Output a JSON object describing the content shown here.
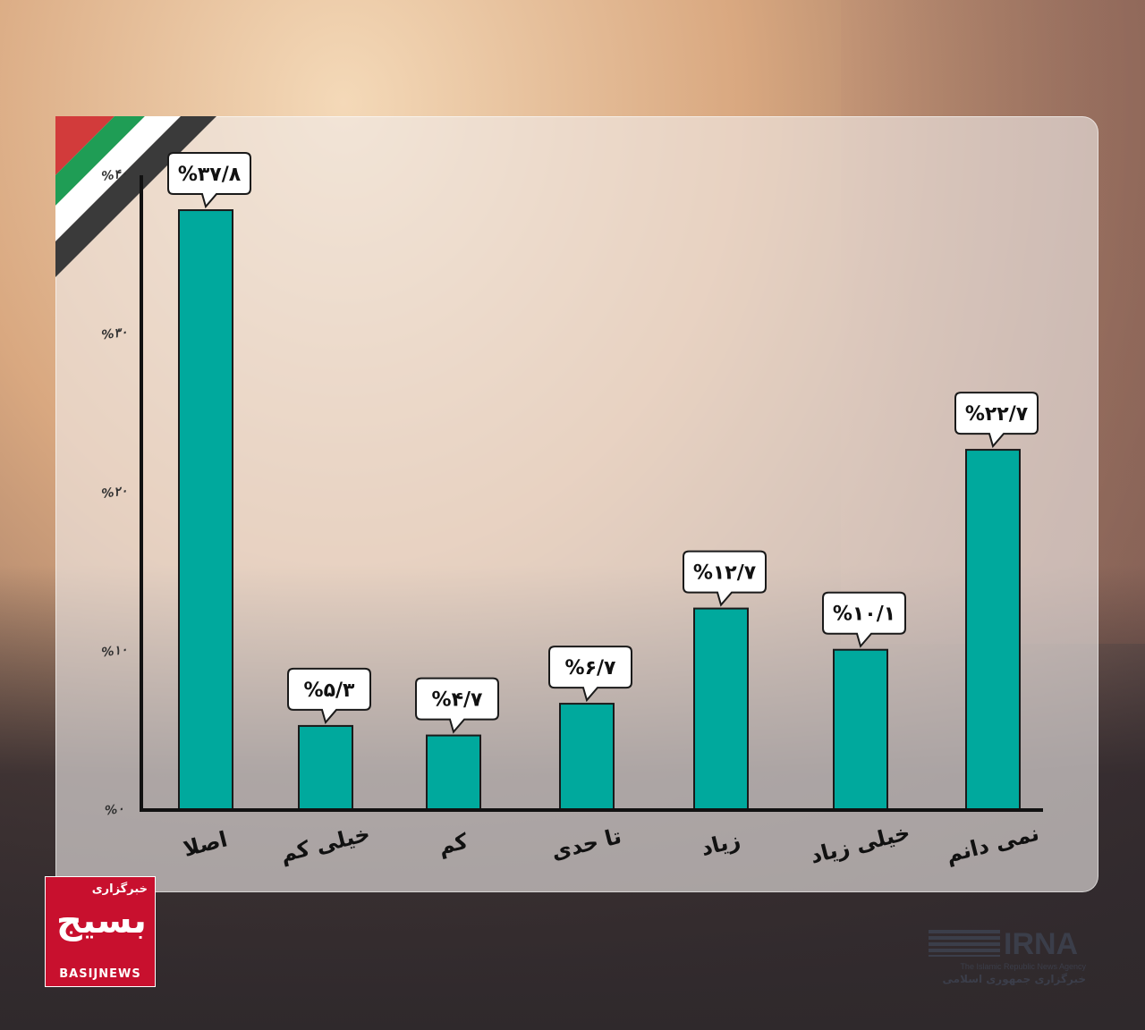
{
  "chart_data": {
    "type": "bar",
    "title": "",
    "xlabel": "",
    "ylabel": "",
    "ylim": [
      0,
      40
    ],
    "yticks": [
      {
        "value": 0,
        "label": "%۰"
      },
      {
        "value": 10,
        "label": "%۱۰"
      },
      {
        "value": 20,
        "label": "%۲۰"
      },
      {
        "value": 30,
        "label": "%۳۰"
      },
      {
        "value": 40,
        "label": "%۴۰"
      }
    ],
    "categories": [
      "اصلا",
      "خیلی کم",
      "کم",
      "تا حدی",
      "زیاد",
      "خیلی زیاد",
      "نمی دانم"
    ],
    "values": [
      37.8,
      5.3,
      4.7,
      6.7,
      12.7,
      10.1,
      22.7
    ],
    "value_labels": [
      "%۳۷/۸",
      "%۵/۳",
      "%۴/۷",
      "%۶/۷",
      "%۱۲/۷",
      "%۱۰/۱",
      "%۲۲/۷"
    ],
    "bar_color": "#00a99d",
    "grid": false,
    "legend": "none"
  },
  "logos": {
    "basij_top": "خبرگزاری",
    "basij_mark": "بسیج",
    "basij_bottom": "BASIJNEWS",
    "irna_word": "IRNA",
    "irna_sub_en": "The Islamic Republic News Agency",
    "irna_sub_fa": "خبرگزاری جمهوری اسلامی"
  },
  "colors": {
    "flag_red": "#d23b3b",
    "flag_white": "#ffffff",
    "flag_green": "#1f9d55",
    "flag_black": "#2a2a2a"
  }
}
